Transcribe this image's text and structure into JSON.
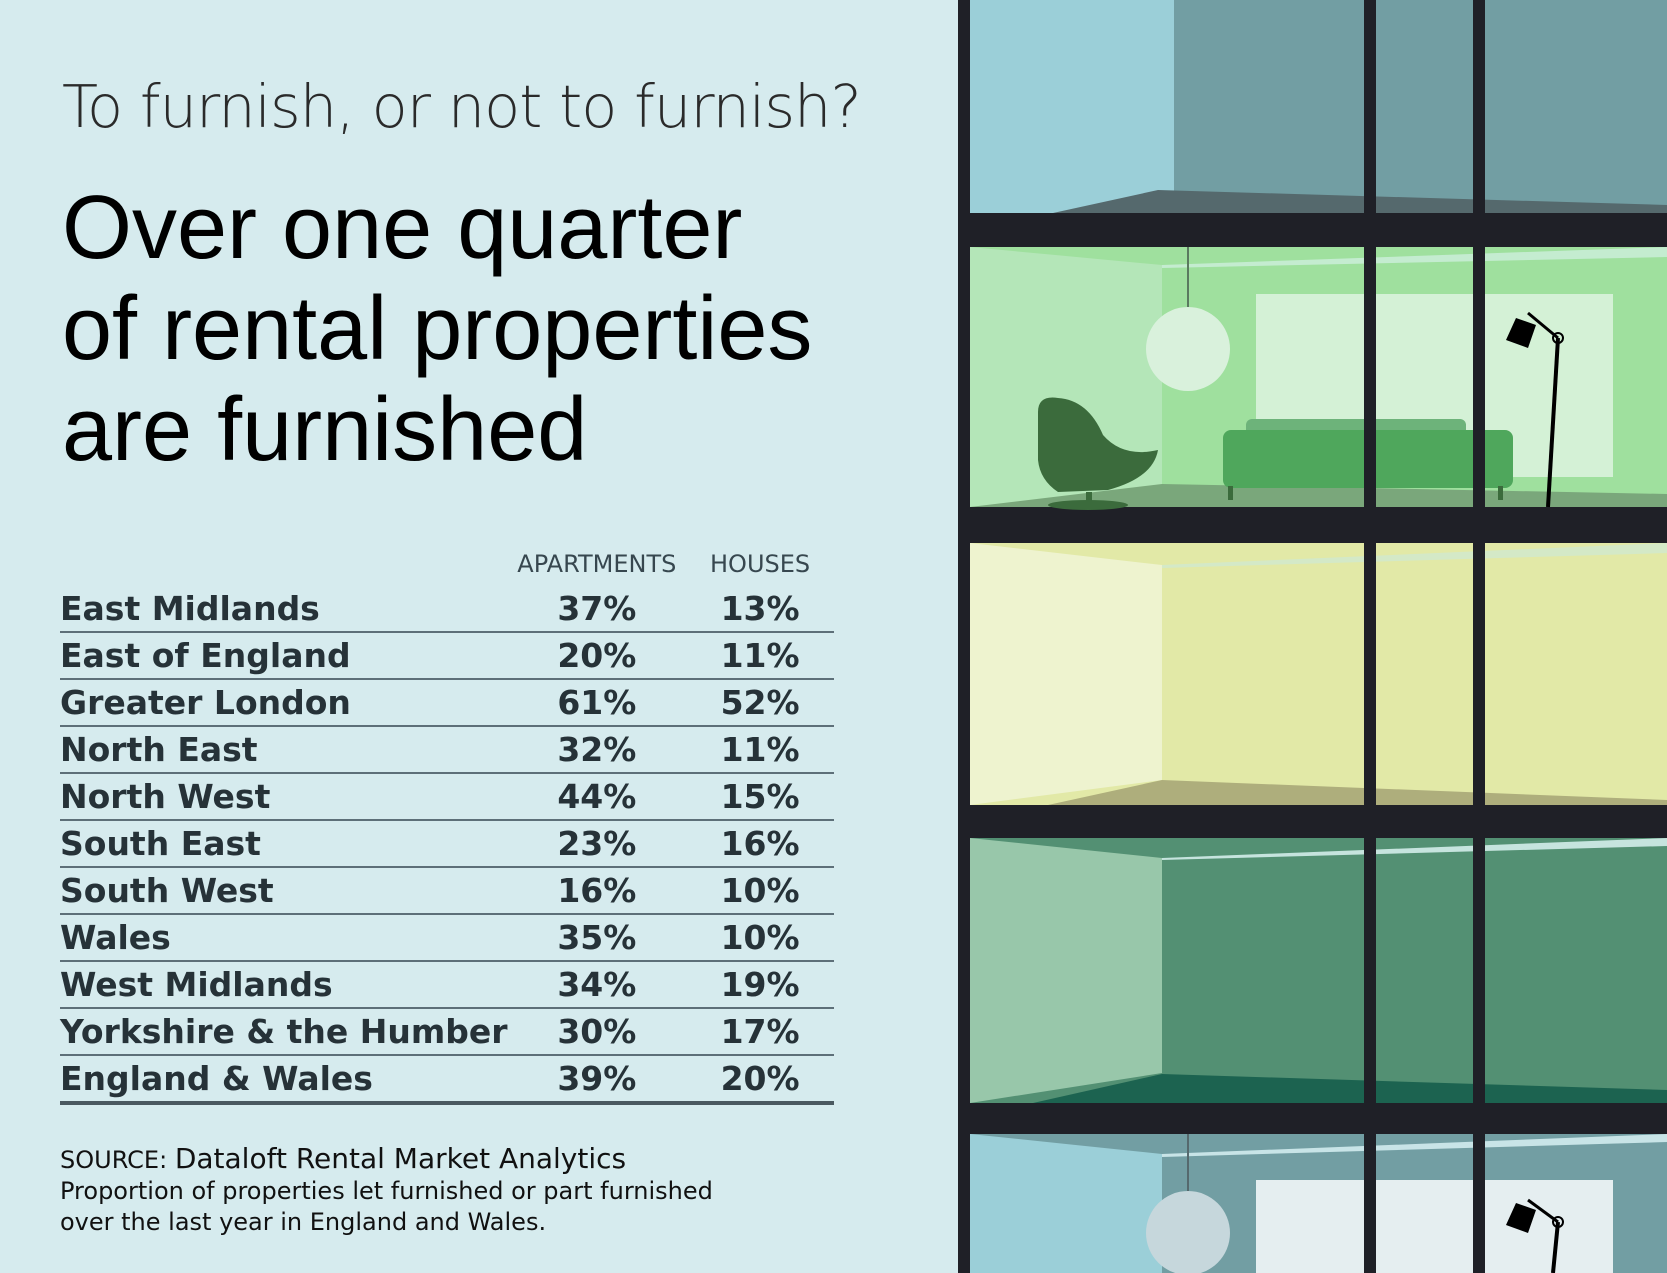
{
  "kicker": "To furnish, or not to furnish?",
  "headline": {
    "line1": "Over one quarter",
    "line2": "of rental properties",
    "line3": "are furnished"
  },
  "table": {
    "headers": {
      "region": "",
      "apartments": "APARTMENTS",
      "houses": "HOUSES"
    },
    "rows": [
      {
        "region": "East Midlands",
        "apartments": "37%",
        "houses": "13%"
      },
      {
        "region": "East of England",
        "apartments": "20%",
        "houses": "11%"
      },
      {
        "region": "Greater London",
        "apartments": "61%",
        "houses": "52%"
      },
      {
        "region": "North East",
        "apartments": "32%",
        "houses": "11%"
      },
      {
        "region": "North West",
        "apartments": "44%",
        "houses": "15%"
      },
      {
        "region": "South East",
        "apartments": "23%",
        "houses": "16%"
      },
      {
        "region": "South West",
        "apartments": "16%",
        "houses": "10%"
      },
      {
        "region": "Wales",
        "apartments": "35%",
        "houses": "10%"
      },
      {
        "region": "West Midlands",
        "apartments": "34%",
        "houses": "19%"
      },
      {
        "region": "Yorkshire & the Humber",
        "apartments": "30%",
        "houses": "17%"
      },
      {
        "region": "England & Wales",
        "apartments": "39%",
        "houses": "20%"
      }
    ]
  },
  "source": {
    "label": "SOURCE: ",
    "name": "Dataloft Rental Market Analytics",
    "note_line1": "Proportion of properties let furnished or part furnished",
    "note_line2": "over the last year in England and Wales."
  },
  "illustration": {
    "name": "apartment-building-windows",
    "colors": {
      "frame": "#1f2027",
      "background": "#d6ebee",
      "floor1_light": "#9bcfd8",
      "floor1_dark": "#729ea3",
      "floor2_light": "#b4e6b8",
      "floor2_dark": "#9fe09e",
      "floor3_light": "#eef3cf",
      "floor3_dark": "#e2e9a7",
      "floor4_light": "#98c7aa",
      "floor4_dark": "#539073",
      "floor5_light": "#9bcfd8",
      "floor5_dark": "#729ea3"
    }
  }
}
